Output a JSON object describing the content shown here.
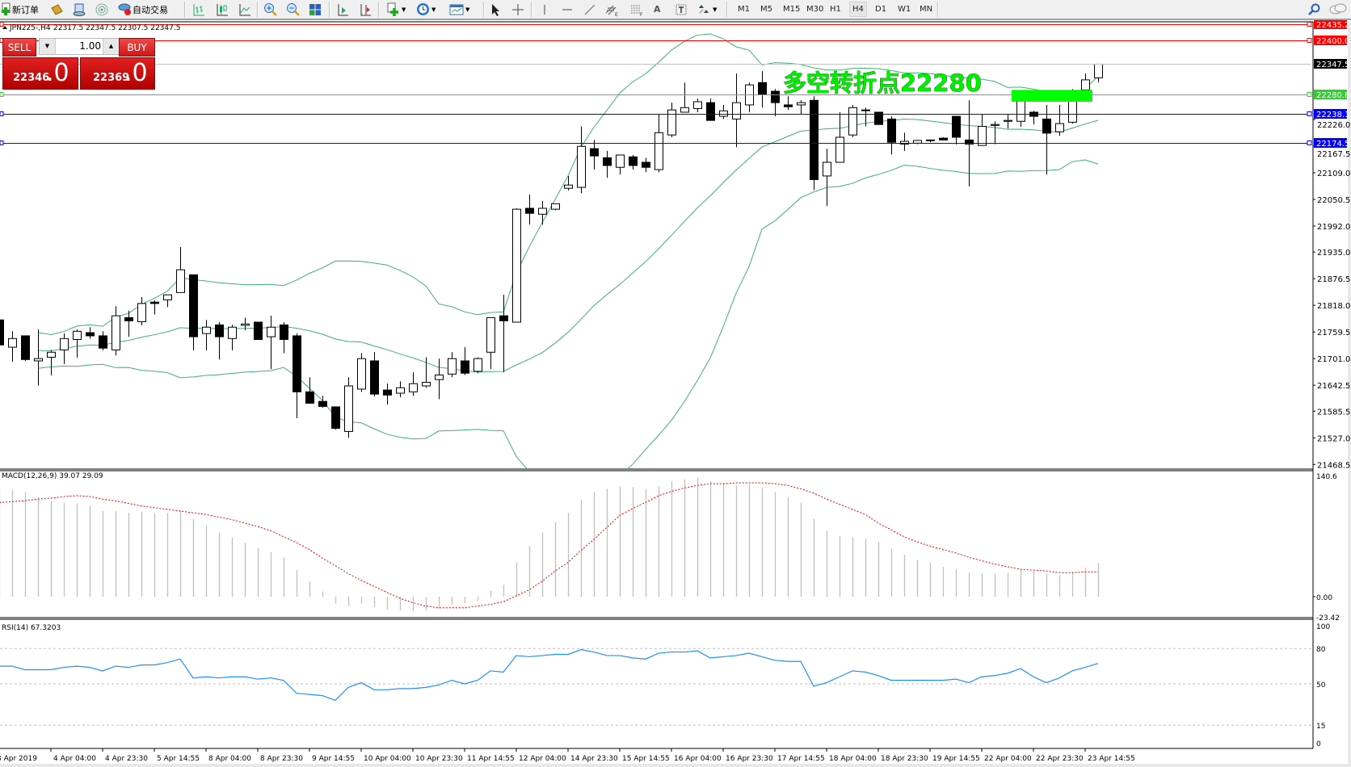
{
  "toolbar": {
    "new_order": "新订单",
    "auto_trading": "自动交易",
    "timeframes": [
      "M1",
      "M5",
      "M15",
      "M30",
      "H1",
      "H4",
      "D1",
      "W1",
      "MN"
    ],
    "active_timeframe": "H4",
    "icons": [
      "new-order-icon",
      "market-watch-icon",
      "data-window-icon",
      "signals-icon",
      "auto-trading-icon",
      "bar-chart-icon",
      "candlestick-icon",
      "line-chart-icon",
      "zoom-in-icon",
      "zoom-out-icon",
      "tile-windows-icon",
      "auto-scroll-icon",
      "chart-shift-icon",
      "indicators-icon",
      "periods-icon",
      "templates-icon",
      "cursor-icon",
      "crosshair-icon",
      "vertical-line-icon",
      "horizontal-line-icon",
      "trendline-icon",
      "equidistant-channel-icon",
      "fibonacci-icon",
      "text-icon",
      "text-label-icon",
      "arrows-icon",
      "search-icon",
      "chat-icon"
    ]
  },
  "chart": {
    "title": "JPN225-,H4",
    "ohlc_text": "22317.5 22347.5 22307.5 22347.5",
    "annotation": "多空转折点22280",
    "colors": {
      "bands": "#3cb371",
      "bull": "#ffffff",
      "bear": "#000000",
      "annotation": "#00ee00",
      "macd_hist": "#c0c0c0",
      "macd_signal": "#ff0000",
      "rsi": "#1e90ff"
    }
  },
  "one_click": {
    "sell_label": "SELL",
    "buy_label": "BUY",
    "lots": "1.00",
    "sell_price_main": "22346",
    "sell_price_big": ".0",
    "buy_price_main": "22369",
    "buy_price_big": ".0"
  },
  "price_axis": {
    "ticks": [
      "22226.0",
      "22167.5",
      "22109.0",
      "22050.5",
      "21992.0",
      "21935.0",
      "21876.5",
      "21818.0",
      "21759.5",
      "21701.0",
      "21642.5",
      "21585.5",
      "21527.0",
      "21468.5"
    ],
    "levels": [
      {
        "value": "22435.2",
        "color": "#ff0000",
        "text_color": "#ffffff"
      },
      {
        "value": "22400.0",
        "color": "#ff0000",
        "text_color": "#ffffff"
      },
      {
        "value": "22347.5",
        "color": "#000000",
        "text_color": "#ffffff",
        "line": "#c0c0c0"
      },
      {
        "value": "22280.8",
        "color": "#32cd32",
        "text_color": "#ffffff"
      },
      {
        "value": "22238.1",
        "color": "#0000ff",
        "text_color": "#ffffff"
      },
      {
        "value": "22174.5",
        "color": "#0000ff",
        "text_color": "#ffffff"
      }
    ]
  },
  "time_axis": [
    "3 Apr 2019",
    "4 Apr 04:00",
    "4 Apr 23:30",
    "5 Apr 14:55",
    "8 Apr 04:00",
    "8 Apr 23:30",
    "9 Apr 14:55",
    "10 Apr 04:00",
    "10 Apr 23:30",
    "11 Apr 14:55",
    "12 Apr 04:00",
    "14 Apr 23:30",
    "15 Apr 14:55",
    "16 Apr 04:00",
    "16 Apr 23:30",
    "17 Apr 14:55",
    "18 Apr 04:00",
    "18 Apr 23:30",
    "19 Apr 14:55",
    "22 Apr 04:00",
    "22 Apr 23:30",
    "23 Apr 14:55"
  ],
  "macd": {
    "label": "MACD(12,26,9) 39.07 29.09",
    "ticks": [
      "140.6",
      "0.00",
      "-23.42"
    ]
  },
  "rsi": {
    "label": "RSI(14) 67.3203",
    "ticks": [
      "100",
      "80",
      "50",
      "15",
      "0"
    ]
  },
  "chart_data": {
    "type": "candlestick",
    "symbol": "JPN225-",
    "timeframe": "H4",
    "ylim": [
      21468.5,
      22435.2
    ],
    "ohlc": [
      [
        21786,
        21791,
        21726,
        21731
      ],
      [
        21726,
        21761,
        21694,
        21745
      ],
      [
        21751,
        21751,
        21696,
        21699
      ],
      [
        21696,
        21765,
        21642,
        21701
      ],
      [
        21704,
        21720,
        21664,
        21715
      ],
      [
        21720,
        21756,
        21689,
        21745
      ],
      [
        21743,
        21765,
        21703,
        21761
      ],
      [
        21758,
        21770,
        21745,
        21751
      ],
      [
        21751,
        21761,
        21719,
        21724
      ],
      [
        21720,
        21816,
        21708,
        21795
      ],
      [
        21791,
        21806,
        21749,
        21784
      ],
      [
        21782,
        21836,
        21774,
        21822
      ],
      [
        21825,
        21829,
        21798,
        21822
      ],
      [
        21830,
        21841,
        21814,
        21841
      ],
      [
        21846,
        21946,
        21846,
        21896
      ],
      [
        21885,
        21885,
        21719,
        21749
      ],
      [
        21756,
        21786,
        21719,
        21770
      ],
      [
        21775,
        21781,
        21699,
        21749
      ],
      [
        21745,
        21775,
        21719,
        21770
      ],
      [
        21774,
        21791,
        21763,
        21777
      ],
      [
        21781,
        21781,
        21743,
        21743
      ],
      [
        21749,
        21795,
        21678,
        21770
      ],
      [
        21775,
        21781,
        21713,
        21743
      ],
      [
        21751,
        21756,
        21570,
        21628
      ],
      [
        21628,
        21660,
        21603,
        21603
      ],
      [
        21607,
        21619,
        21593,
        21596
      ],
      [
        21595,
        21595,
        21545,
        21548
      ],
      [
        21541,
        21660,
        21527,
        21641
      ],
      [
        21634,
        21713,
        21628,
        21701
      ],
      [
        21696,
        21715,
        21618,
        21623
      ],
      [
        21632,
        21646,
        21600,
        21621
      ],
      [
        21625,
        21651,
        21616,
        21637
      ],
      [
        21628,
        21671,
        21619,
        21646
      ],
      [
        21641,
        21704,
        21637,
        21649
      ],
      [
        21655,
        21701,
        21612,
        21665
      ],
      [
        21667,
        21715,
        21660,
        21701
      ],
      [
        21696,
        21726,
        21665,
        21669
      ],
      [
        21673,
        21704,
        21669,
        21701
      ],
      [
        21715,
        21791,
        21678,
        21791
      ],
      [
        21795,
        21841,
        21671,
        21784
      ],
      [
        21781,
        22031,
        21781,
        22029
      ],
      [
        22031,
        22061,
        21995,
        22020
      ],
      [
        22018,
        22047,
        21995,
        22031
      ],
      [
        22029,
        22041,
        22027,
        22041
      ],
      [
        22075,
        22102,
        22070,
        22082
      ],
      [
        22077,
        22211,
        22064,
        22167
      ],
      [
        22162,
        22181,
        22116,
        22146
      ],
      [
        22142,
        22157,
        22098,
        22125
      ],
      [
        22121,
        22148,
        22105,
        22148
      ],
      [
        22144,
        22148,
        22116,
        22125
      ],
      [
        22132,
        22142,
        22110,
        22121
      ],
      [
        22116,
        22238,
        22110,
        22197
      ],
      [
        22192,
        22263,
        22187,
        22247
      ],
      [
        22242,
        22307,
        22242,
        22252
      ],
      [
        22250,
        22272,
        22242,
        22265
      ],
      [
        22263,
        22272,
        22224,
        22224
      ],
      [
        22233,
        22258,
        22227,
        22245
      ],
      [
        22227,
        22327,
        22165,
        22263
      ],
      [
        22258,
        22307,
        22242,
        22302
      ],
      [
        22307,
        22332,
        22252,
        22281
      ],
      [
        22288,
        22293,
        22233,
        22263
      ],
      [
        22258,
        22277,
        22247,
        22254
      ],
      [
        22258,
        22268,
        22238,
        22263
      ],
      [
        22268,
        22277,
        22071,
        22094
      ],
      [
        22102,
        22162,
        22036,
        22132
      ],
      [
        22132,
        22242,
        22132,
        22187
      ],
      [
        22192,
        22258,
        22187,
        22252
      ],
      [
        22247,
        22252,
        22211,
        22247
      ],
      [
        22242,
        22242,
        22215,
        22215
      ],
      [
        22227,
        22233,
        22149,
        22176
      ],
      [
        22172,
        22197,
        22157,
        22178
      ],
      [
        22174,
        22181,
        22172,
        22180
      ],
      [
        22181,
        22181,
        22176,
        22180
      ],
      [
        22185,
        22187,
        22181,
        22181
      ],
      [
        22233,
        22233,
        22171,
        22187
      ],
      [
        22181,
        22268,
        22079,
        22172
      ],
      [
        22169,
        22238,
        22169,
        22211
      ],
      [
        22213,
        22222,
        22172,
        22215
      ],
      [
        22222,
        22238,
        22206,
        22224
      ],
      [
        22222,
        22289,
        22210,
        22284
      ],
      [
        22242,
        22245,
        22215,
        22233
      ],
      [
        22227,
        22258,
        22105,
        22196
      ],
      [
        22199,
        22258,
        22190,
        22217
      ],
      [
        22220,
        22293,
        22217,
        22275
      ],
      [
        22291,
        22327,
        22284,
        22313
      ],
      [
        22317.5,
        22347.5,
        22307.5,
        22347.5
      ]
    ],
    "bollinger": {
      "period": 20,
      "deviation": 2
    },
    "macd_hist": [
      127,
      125,
      122,
      116,
      112,
      110,
      109,
      106,
      100,
      100,
      98,
      99,
      98,
      98,
      101,
      91,
      83,
      75,
      69,
      63,
      57,
      52,
      46,
      31,
      18,
      6,
      -8,
      -11,
      -8,
      -12,
      -15,
      -16,
      -17,
      -16,
      -14,
      -9,
      -8,
      -5,
      7,
      14,
      40,
      59,
      75,
      87,
      98,
      113,
      122,
      126,
      129,
      128,
      126,
      129,
      135,
      137,
      139,
      135,
      133,
      130,
      131,
      127,
      122,
      116,
      110,
      91,
      77,
      71,
      70,
      68,
      64,
      56,
      49,
      43,
      40,
      35,
      32,
      28,
      27,
      27,
      28,
      32,
      30,
      27,
      25,
      29,
      34,
      39.07
    ],
    "macd_signal": [
      110,
      111,
      112,
      114,
      115,
      117,
      118,
      117,
      114,
      112,
      109,
      106,
      104,
      102,
      100,
      98,
      96,
      93,
      90,
      86,
      82,
      77,
      70,
      63,
      55,
      45,
      36,
      27,
      19,
      12,
      5,
      -2,
      -7,
      -11,
      -13,
      -13,
      -13,
      -11,
      -9,
      -6,
      1,
      8,
      18,
      30,
      40,
      54,
      67,
      81,
      95,
      103,
      110,
      118,
      123,
      127,
      130,
      132,
      132,
      133,
      133,
      133,
      132,
      130,
      126,
      121,
      114,
      108,
      102,
      96,
      86,
      78,
      70,
      64,
      59,
      55,
      51,
      46,
      42,
      38,
      35,
      32,
      31,
      30,
      28,
      28,
      29,
      29.09
    ],
    "macd_ylim": [
      -23.42,
      140.6
    ],
    "rsi": [
      65,
      65,
      62,
      62,
      62,
      64,
      65,
      64,
      61,
      65,
      64,
      66,
      66,
      68,
      71,
      55,
      56,
      55,
      56,
      56,
      54,
      55,
      53,
      42,
      41,
      40,
      36,
      47,
      51,
      45,
      45,
      46,
      46,
      47,
      49,
      53,
      50,
      53,
      61,
      60,
      74,
      73,
      74,
      75,
      75,
      79,
      77,
      74,
      74,
      72,
      71,
      76,
      77,
      77,
      78,
      72,
      73,
      74,
      76,
      73,
      70,
      69,
      69,
      48,
      51,
      56,
      61,
      60,
      57,
      53,
      53,
      53,
      53,
      53,
      54,
      51,
      56,
      57,
      59,
      63,
      56,
      51,
      55,
      61,
      64,
      67.32
    ],
    "rsi_levels": [
      80,
      50,
      15
    ],
    "rsi_ylim": [
      0,
      100
    ]
  }
}
